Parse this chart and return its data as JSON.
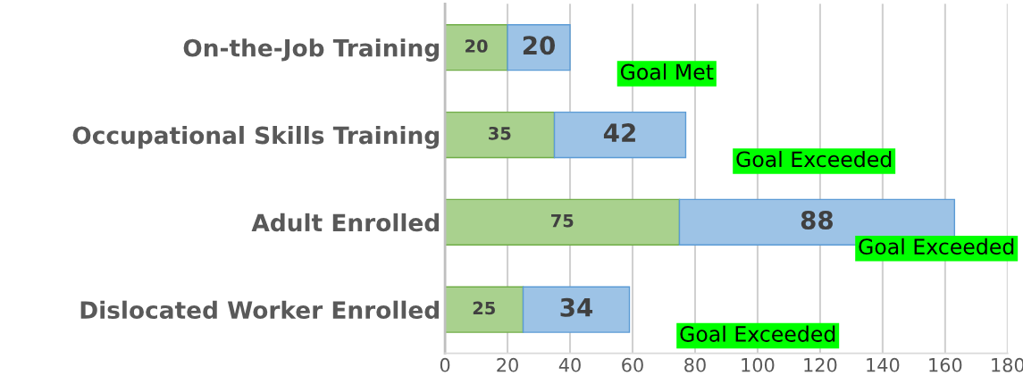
{
  "chart_data": {
    "type": "bar",
    "orientation": "horizontal",
    "stacked": true,
    "categories": [
      "On-the-Job Training",
      "Occupational Skills Training",
      "Adult Enrolled",
      "Dislocated Worker Enrolled"
    ],
    "series": [
      {
        "color": "#a9d18e",
        "values": [
          20,
          35,
          75,
          25
        ]
      },
      {
        "color": "#9dc3e6",
        "values": [
          20,
          42,
          88,
          34
        ]
      }
    ],
    "xlim": [
      0,
      180
    ],
    "xticks": [
      0,
      20,
      40,
      60,
      80,
      100,
      120,
      140,
      160,
      180
    ],
    "grid": "x",
    "data_labels": true,
    "annotations": [
      "Goal Met",
      "Goal Exceeded",
      "Goal Exceeded",
      "Goal Exceeded"
    ]
  }
}
